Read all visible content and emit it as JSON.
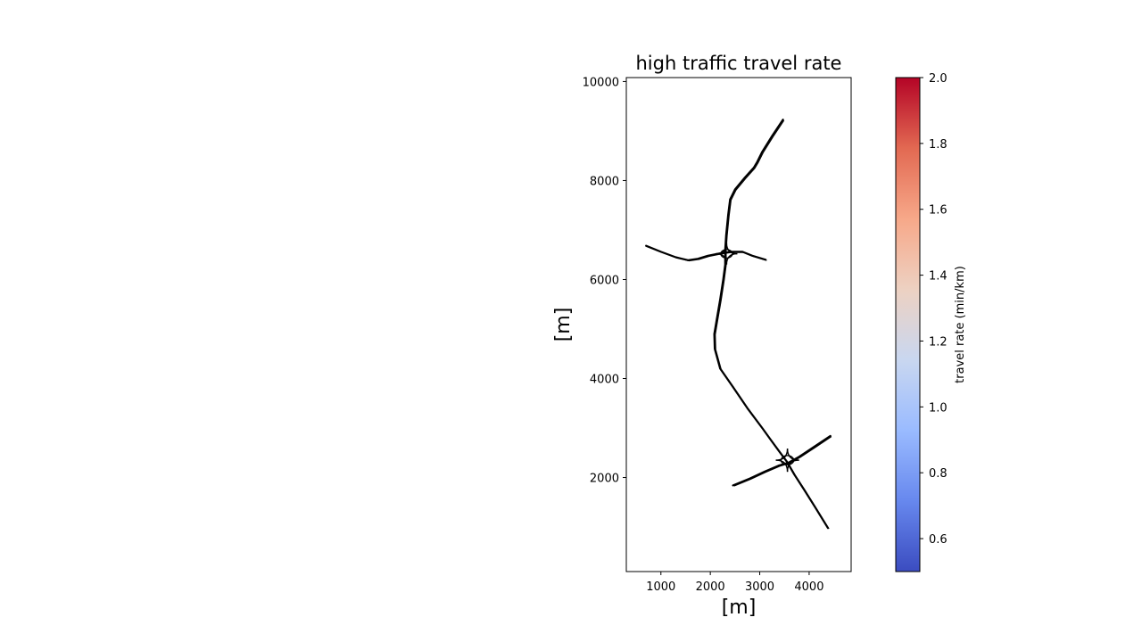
{
  "chart_data": {
    "type": "line",
    "title": "high traffic travel rate",
    "xlabel": "[m]",
    "ylabel": "[m]",
    "xlim": [
      300,
      4850
    ],
    "ylim": [
      100,
      10080
    ],
    "xticks": [
      1000,
      2000,
      3000,
      4000
    ],
    "yticks": [
      2000,
      4000,
      6000,
      8000,
      10000
    ],
    "grid": false,
    "line_color": "#000000",
    "series": [
      {
        "values": [
          [
            3470,
            9230
          ],
          [
            3250,
            8900
          ],
          [
            3050,
            8580
          ],
          [
            2950,
            8380
          ],
          [
            2880,
            8260
          ],
          [
            2700,
            8060
          ],
          [
            2500,
            7820
          ],
          [
            2400,
            7620
          ],
          [
            2360,
            7300
          ],
          [
            2320,
            6900
          ],
          [
            2300,
            6600
          ],
          [
            2300,
            6300
          ],
          [
            2260,
            6000
          ],
          [
            2200,
            5600
          ],
          [
            2130,
            5200
          ],
          [
            2080,
            4900
          ],
          [
            2090,
            4600
          ],
          [
            2200,
            4200
          ],
          [
            2450,
            3840
          ],
          [
            2750,
            3400
          ],
          [
            3050,
            3000
          ],
          [
            3230,
            2750
          ],
          [
            3400,
            2520
          ],
          [
            3550,
            2320
          ],
          [
            3700,
            2060
          ],
          [
            3900,
            1750
          ],
          [
            4120,
            1400
          ],
          [
            4380,
            980
          ]
        ]
      },
      {
        "values": [
          [
            700,
            6680
          ],
          [
            1000,
            6560
          ],
          [
            1300,
            6450
          ],
          [
            1550,
            6390
          ],
          [
            1750,
            6420
          ],
          [
            1950,
            6480
          ],
          [
            2200,
            6530
          ],
          [
            2400,
            6560
          ],
          [
            2650,
            6560
          ],
          [
            2850,
            6480
          ],
          [
            3120,
            6400
          ]
        ]
      },
      {
        "values": [
          [
            2460,
            1840
          ],
          [
            2800,
            1980
          ],
          [
            3100,
            2120
          ],
          [
            3380,
            2240
          ],
          [
            3580,
            2300
          ],
          [
            3800,
            2420
          ],
          [
            4100,
            2620
          ],
          [
            4430,
            2840
          ]
        ]
      }
    ],
    "colorbar": {
      "label": "travel rate (min/km)",
      "colormap": "coolwarm",
      "range": [
        0.5,
        2.0
      ],
      "ticks": [
        0.6,
        0.8,
        1.0,
        1.2,
        1.4,
        1.6,
        1.8,
        2.0
      ],
      "stops": [
        "#3b4cc0",
        "#6788ee",
        "#9abbff",
        "#c9d7f0",
        "#edd1c2",
        "#f7a889",
        "#e26952",
        "#b40426"
      ]
    }
  }
}
